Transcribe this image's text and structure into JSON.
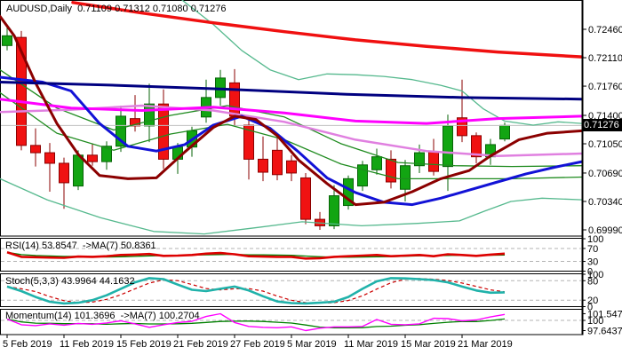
{
  "title": "AUDUSD,Daily  0.71109 0.71312 0.71080 0.71276",
  "chart_data": {
    "type": "candlestick",
    "symbol": "AUDUSD",
    "timeframe": "Daily",
    "ohlc_display": {
      "open": "0.71109",
      "high": "0.71312",
      "low": "0.71080",
      "close": "0.71276"
    },
    "price_axis": {
      "labels": [
        "0.72460",
        "0.72110",
        "0.71760",
        "0.71400",
        "0.71050",
        "0.70690",
        "0.70340",
        "0.69990"
      ],
      "current": "0.71276"
    },
    "time_axis": {
      "labels": [
        [
          0,
          "5 Feb 2019"
        ],
        [
          4,
          "11 Feb 2019"
        ],
        [
          8,
          "15 Feb 2019"
        ],
        [
          12,
          "21 Feb 2019"
        ],
        [
          16,
          "27 Feb 2019"
        ],
        [
          20,
          "5 Mar 2019"
        ],
        [
          24,
          "11 Mar 2019"
        ],
        [
          28,
          "15 Mar 2019"
        ],
        [
          32,
          "21 Mar 2019"
        ]
      ]
    },
    "candles": [
      [
        0.7226,
        0.7248,
        0.722,
        0.7238
      ],
      [
        0.7236,
        0.7244,
        0.7097,
        0.7103
      ],
      [
        0.7103,
        0.7124,
        0.7077,
        0.7094
      ],
      [
        0.7094,
        0.7106,
        0.7046,
        0.7081
      ],
      [
        0.7081,
        0.7088,
        0.7025,
        0.7057
      ],
      [
        0.7053,
        0.7097,
        0.7048,
        0.7091
      ],
      [
        0.7091,
        0.7105,
        0.7078,
        0.7083
      ],
      [
        0.7083,
        0.7108,
        0.7073,
        0.7102
      ],
      [
        0.7102,
        0.7152,
        0.7095,
        0.7139
      ],
      [
        0.7136,
        0.7165,
        0.712,
        0.7127
      ],
      [
        0.7127,
        0.7179,
        0.7107,
        0.7154
      ],
      [
        0.7154,
        0.7172,
        0.7074,
        0.7086
      ],
      [
        0.7086,
        0.7106,
        0.7068,
        0.7101
      ],
      [
        0.7101,
        0.7126,
        0.7089,
        0.7121
      ],
      [
        0.7138,
        0.7184,
        0.7131,
        0.7162
      ],
      [
        0.7162,
        0.7196,
        0.7152,
        0.7186
      ],
      [
        0.718,
        0.7197,
        0.7126,
        0.7139
      ],
      [
        0.7128,
        0.7134,
        0.7061,
        0.7086
      ],
      [
        0.7086,
        0.7114,
        0.7059,
        0.707
      ],
      [
        0.7097,
        0.7113,
        0.706,
        0.7067
      ],
      [
        0.7084,
        0.7091,
        0.7059,
        0.7069
      ],
      [
        0.7063,
        0.7069,
        0.7006,
        0.7012
      ],
      [
        0.7012,
        0.7021,
        0.6999,
        0.7004
      ],
      [
        0.7004,
        0.7054,
        0.7,
        0.7041
      ],
      [
        0.7029,
        0.7066,
        0.7024,
        0.7062
      ],
      [
        0.7053,
        0.7084,
        0.7047,
        0.7079
      ],
      [
        0.7073,
        0.7099,
        0.7067,
        0.7089
      ],
      [
        0.7086,
        0.7097,
        0.705,
        0.7058
      ],
      [
        0.7049,
        0.7085,
        0.7034,
        0.7078
      ],
      [
        0.7078,
        0.7104,
        0.7069,
        0.7094
      ],
      [
        0.7095,
        0.7111,
        0.7066,
        0.7071
      ],
      [
        0.7077,
        0.7141,
        0.7047,
        0.7127
      ],
      [
        0.7137,
        0.7184,
        0.7107,
        0.7115
      ],
      [
        0.7115,
        0.7119,
        0.7081,
        0.7089
      ],
      [
        0.7089,
        0.7111,
        0.7079,
        0.7104
      ],
      [
        0.71109,
        0.71312,
        0.7108,
        0.71276
      ]
    ],
    "overlays": [
      {
        "name": "band-seagreen-lower",
        "color": "#56b98e",
        "width": 1.3,
        "points": [
          [
            0,
            0.7062
          ],
          [
            53,
            0.7036
          ],
          [
            113,
            0.7014
          ],
          [
            173,
            0.6997
          ],
          [
            230,
            0.6994
          ],
          [
            290,
            0.7002
          ],
          [
            340,
            0.7009
          ],
          [
            407,
            0.7004
          ],
          [
            470,
            0.7007
          ],
          [
            517,
            0.701
          ],
          [
            545,
            0.7022
          ],
          [
            575,
            0.7034
          ],
          [
            610,
            0.7038
          ],
          [
            655,
            0.7036
          ]
        ]
      },
      {
        "name": "band-seagreen-upper",
        "color": "#56b98e",
        "width": 1.3,
        "points": [
          [
            205,
            0.7282
          ],
          [
            240,
            0.7252
          ],
          [
            272,
            0.722
          ],
          [
            304,
            0.7196
          ],
          [
            336,
            0.7184
          ],
          [
            368,
            0.7191
          ],
          [
            400,
            0.719
          ],
          [
            432,
            0.7188
          ],
          [
            464,
            0.7184
          ],
          [
            496,
            0.7177
          ],
          [
            520,
            0.717
          ],
          [
            544,
            0.7148
          ],
          [
            568,
            0.7133
          ],
          [
            600,
            0.7128
          ],
          [
            628,
            0.7132
          ],
          [
            655,
            0.713
          ]
        ]
      },
      {
        "name": "band-green-upper",
        "color": "#1f8b1f",
        "width": 1.3,
        "points": [
          [
            0,
            0.7196
          ],
          [
            64,
            0.7149
          ],
          [
            128,
            0.7122
          ],
          [
            192,
            0.714
          ],
          [
            256,
            0.7152
          ],
          [
            320,
            0.7138
          ],
          [
            384,
            0.7105
          ],
          [
            448,
            0.7082
          ],
          [
            512,
            0.7078
          ],
          [
            576,
            0.7077
          ],
          [
            655,
            0.7078
          ]
        ]
      },
      {
        "name": "band-green-lower",
        "color": "#1f8b1f",
        "width": 1.3,
        "points": [
          [
            0,
            0.7168
          ],
          [
            64,
            0.7118
          ],
          [
            128,
            0.7097
          ],
          [
            192,
            0.7117
          ],
          [
            256,
            0.7129
          ],
          [
            320,
            0.711
          ],
          [
            384,
            0.708
          ],
          [
            448,
            0.7062
          ],
          [
            512,
            0.7062
          ],
          [
            576,
            0.7062
          ],
          [
            655,
            0.7064
          ]
        ]
      },
      {
        "name": "ma-orchid",
        "color": "#e080e0",
        "width": 2.5,
        "points": [
          [
            0,
            0.7144
          ],
          [
            80,
            0.7147
          ],
          [
            160,
            0.7152
          ],
          [
            240,
            0.7146
          ],
          [
            320,
            0.7132
          ],
          [
            400,
            0.711
          ],
          [
            480,
            0.7096
          ],
          [
            560,
            0.709
          ],
          [
            655,
            0.7093
          ]
        ]
      },
      {
        "name": "ma-magenta",
        "color": "#ff00ff",
        "width": 3,
        "points": [
          [
            0,
            0.716
          ],
          [
            80,
            0.7149
          ],
          [
            160,
            0.7146
          ],
          [
            240,
            0.715
          ],
          [
            320,
            0.7143
          ],
          [
            400,
            0.7133
          ],
          [
            480,
            0.713
          ],
          [
            560,
            0.7136
          ],
          [
            655,
            0.7139
          ]
        ]
      },
      {
        "name": "ma-blue",
        "color": "#1212d6",
        "width": 3,
        "points": [
          [
            0,
            0.7187
          ],
          [
            48,
            0.7181
          ],
          [
            80,
            0.717
          ],
          [
            112,
            0.713
          ],
          [
            144,
            0.7102
          ],
          [
            176,
            0.7096
          ],
          [
            208,
            0.7104
          ],
          [
            240,
            0.7128
          ],
          [
            272,
            0.7139
          ],
          [
            304,
            0.7124
          ],
          [
            336,
            0.7095
          ],
          [
            368,
            0.7063
          ],
          [
            400,
            0.7045
          ],
          [
            432,
            0.7033
          ],
          [
            464,
            0.703
          ],
          [
            496,
            0.7038
          ],
          [
            528,
            0.7048
          ],
          [
            560,
            0.7058
          ],
          [
            592,
            0.7068
          ],
          [
            624,
            0.7076
          ],
          [
            655,
            0.7083
          ]
        ]
      },
      {
        "name": "ma-maroon",
        "color": "#8b0000",
        "width": 3,
        "points": [
          [
            0,
            0.7262
          ],
          [
            16,
            0.7238
          ],
          [
            40,
            0.718
          ],
          [
            64,
            0.713
          ],
          [
            88,
            0.7092
          ],
          [
            112,
            0.7066
          ],
          [
            144,
            0.7062
          ],
          [
            176,
            0.7063
          ],
          [
            208,
            0.7095
          ],
          [
            240,
            0.7125
          ],
          [
            264,
            0.7139
          ],
          [
            288,
            0.7135
          ],
          [
            312,
            0.7115
          ],
          [
            336,
            0.7085
          ],
          [
            368,
            0.7056
          ],
          [
            400,
            0.703
          ],
          [
            432,
            0.7033
          ],
          [
            464,
            0.7046
          ],
          [
            496,
            0.7062
          ],
          [
            528,
            0.7072
          ],
          [
            552,
            0.709
          ],
          [
            584,
            0.711
          ],
          [
            616,
            0.7118
          ],
          [
            655,
            0.7121
          ]
        ]
      },
      {
        "name": "ma-navy",
        "color": "#000080",
        "width": 3,
        "points": [
          [
            0,
            0.7181
          ],
          [
            130,
            0.7177
          ],
          [
            260,
            0.7172
          ],
          [
            390,
            0.7166
          ],
          [
            520,
            0.7162
          ],
          [
            655,
            0.716
          ]
        ]
      },
      {
        "name": "ma-trend-red",
        "color": "#f01010",
        "width": 3.5,
        "points": [
          [
            82,
            0.7279
          ],
          [
            160,
            0.7266
          ],
          [
            240,
            0.7254
          ],
          [
            320,
            0.7243
          ],
          [
            400,
            0.7233
          ],
          [
            480,
            0.7225
          ],
          [
            560,
            0.7218
          ],
          [
            655,
            0.7212
          ]
        ]
      }
    ],
    "panels": {
      "rsi": {
        "label": "RSI(14) 53.8547  ->MA(7) 50.8361",
        "main_color": "#dd0000",
        "ma_color": "#008000",
        "ma_period": 7,
        "levels": [
          70,
          30
        ],
        "axis_labels": [
          "100",
          "70",
          "30",
          "0"
        ],
        "values": [
          58,
          44,
          43,
          42,
          41,
          45,
          44,
          46,
          50,
          51,
          53,
          47,
          48,
          50,
          54,
          56,
          52,
          46,
          45,
          44,
          44,
          39,
          40,
          44,
          46,
          48,
          50,
          46,
          48,
          50,
          46,
          52,
          50,
          47,
          51,
          53.8547
        ]
      },
      "stoch": {
        "label": "Stoch(5,3,3) 43.9964 44.1632",
        "main_color": "#20b2aa",
        "signal_color": "#cc0000",
        "signal_period": 3,
        "levels": [
          80,
          20
        ],
        "axis_labels": [
          "100",
          "80",
          "20",
          "0"
        ],
        "values": [
          62,
          48,
          30,
          15,
          10,
          12,
          20,
          35,
          55,
          75,
          88,
          85,
          68,
          52,
          48,
          55,
          62,
          50,
          32,
          16,
          11,
          10,
          12,
          15,
          30,
          55,
          78,
          88,
          87,
          85,
          82,
          75,
          62,
          50,
          43,
          43.9964
        ]
      },
      "momentum": {
        "label": "Momentum(14) 101.3696  ->MA(7) 100.2704",
        "main_color": "#ff00ff",
        "ma_color": "#008000",
        "ma_period": 7,
        "levels": [
          100
        ],
        "axis_labels": [
          "101.547",
          "100",
          "97.6437"
        ],
        "values": [
          100.3,
          99.0,
          98.8,
          99.2,
          98.9,
          99.3,
          99.1,
          99.4,
          99.9,
          99.2,
          98.4,
          99.0,
          99.5,
          99.8,
          100.9,
          101.547,
          99.5,
          98.6,
          98.4,
          98.3,
          98.5,
          97.6437,
          98.2,
          98.5,
          98.5,
          98.6,
          100.2,
          99.1,
          99.0,
          99.2,
          100.5,
          100.4,
          99.9,
          100.1,
          100.8,
          101.3696
        ]
      }
    },
    "colors": {
      "background": "#ffffff",
      "border": "#000000",
      "candle_up_fill": "#12a512",
      "candle_up_stroke": "#076307",
      "candle_down_fill": "#f01212",
      "candle_down_stroke": "#8b0000",
      "level_dash": "#b3b3b3",
      "current_price_line": "#c0c0c0",
      "price_tag_bg": "#000000",
      "price_tag_text": "#ffffff"
    }
  }
}
